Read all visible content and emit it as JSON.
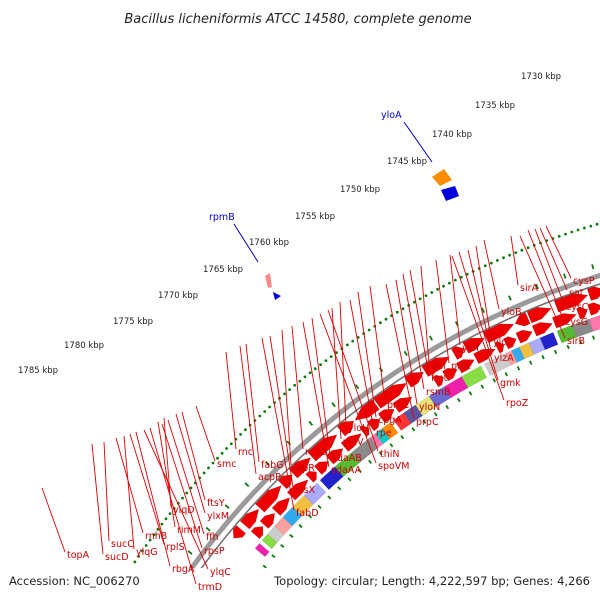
{
  "title": "Bacillus licheniformis ATCC 14580, complete genome",
  "footer": {
    "accession": "Accession: NC_006270",
    "summary": "Topology: circular; Length: 4,222,597 bp; Genes: 4,266"
  },
  "scale_labels": [
    "1730 kbp",
    "1735 kbp",
    "1740 kbp",
    "1745 kbp",
    "1750 kbp",
    "1755 kbp",
    "1760 kbp",
    "1765 kbp",
    "1770 kbp",
    "1775 kbp",
    "1780 kbp",
    "1785 kbp"
  ],
  "rna_labels": [
    "yloA",
    "rpmB"
  ],
  "gene_labels": [
    "cysP",
    "sat",
    "cysC",
    "cysG",
    "sirA",
    "sirB",
    "yloB",
    "yloC",
    "ylzA",
    "yloI",
    "gmk",
    "rpoZ",
    "priA",
    "def",
    "fmt",
    "rsmB",
    "prkC",
    "yloN",
    "cpgA",
    "prpC",
    "rpe",
    "yloU",
    "yloV",
    "thiN",
    "spoVM",
    "sdaAB",
    "sdaAA",
    "recG",
    "fapR",
    "plsX",
    "fabD",
    "fabG",
    "acpP",
    "rnc",
    "smc",
    "ftsY",
    "ylxM",
    "ylqD",
    "ffh",
    "rimM",
    "rpsP",
    "trmD",
    "ylqC",
    "rbgA",
    "rplS",
    "ylqG",
    "rnhB",
    "sucC",
    "sucD",
    "topA"
  ],
  "colors": {
    "forward_arrow": "#ee0000",
    "reverse_arrow": "#ee0000",
    "label_line": "#dd0000",
    "rna_label": "#0000cc",
    "backbone": "#888888",
    "scale_dots": "#0a7a0a"
  }
}
